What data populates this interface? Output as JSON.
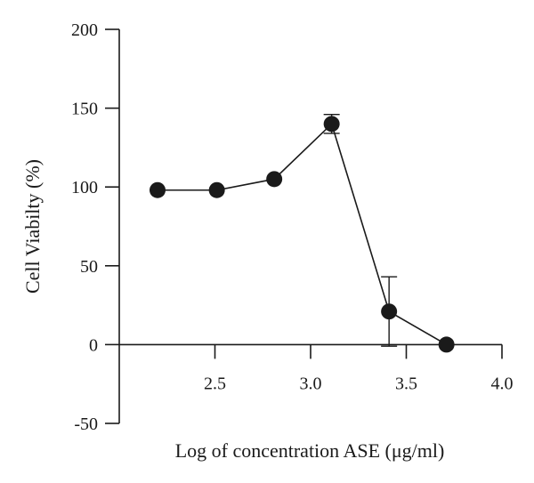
{
  "chart_data": {
    "type": "line",
    "title": "",
    "xlabel": "Log of concentration ASE (μg/ml)",
    "ylabel": "Cell Viabilty (%)",
    "xlim": [
      2.0,
      4.0
    ],
    "ylim": [
      -50,
      200
    ],
    "x_ticks": [
      2.5,
      3.0,
      3.5,
      4.0
    ],
    "x_tick_labels": [
      "2.5",
      "3.0",
      "3.5",
      "4.0"
    ],
    "y_ticks": [
      -50,
      0,
      50,
      100,
      150,
      200
    ],
    "y_tick_labels": [
      "-50",
      "0",
      "50",
      "100",
      "150",
      "200"
    ],
    "grid": false,
    "series": [
      {
        "x": [
          2.2,
          2.51,
          2.81,
          3.11,
          3.41,
          3.71
        ],
        "y": [
          98,
          98,
          105,
          140,
          21,
          0
        ],
        "err": [
          0,
          0,
          0,
          6,
          22,
          0
        ]
      }
    ]
  }
}
